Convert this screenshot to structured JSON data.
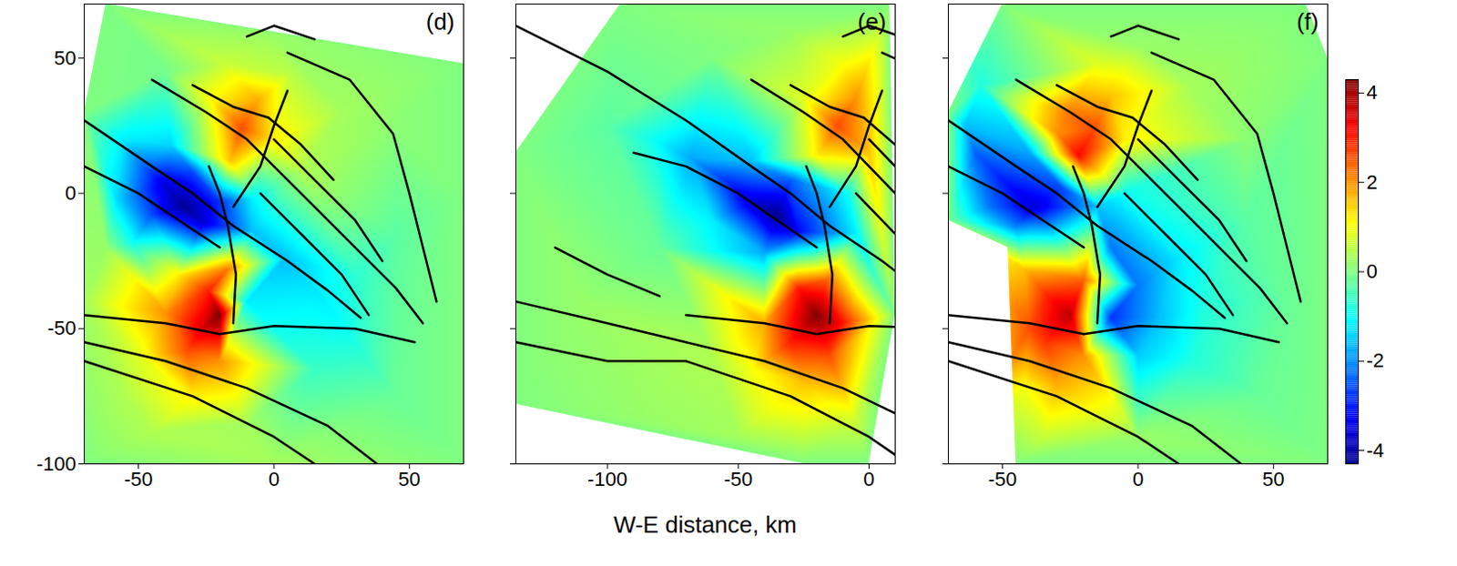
{
  "chart_data": {
    "type": "heatmap",
    "xlabel": "W-E distance, km",
    "colorbar": {
      "range": [
        -4.3,
        4.3
      ],
      "ticks": [
        -4,
        -2,
        0,
        2,
        4
      ]
    },
    "faults": [
      [
        [
          -15,
          -48
        ],
        [
          -14,
          -30
        ],
        [
          -17,
          -12
        ],
        [
          -20,
          0
        ],
        [
          -24,
          10
        ]
      ],
      [
        [
          -135,
          62
        ],
        [
          -100,
          45
        ],
        [
          -70,
          27
        ],
        [
          -45,
          10
        ],
        [
          -30,
          0
        ],
        [
          -15,
          -12
        ],
        [
          5,
          -25
        ],
        [
          20,
          -36
        ],
        [
          32,
          -46
        ]
      ],
      [
        [
          5,
          52
        ],
        [
          28,
          42
        ],
        [
          44,
          22
        ],
        [
          50,
          0
        ],
        [
          55,
          -20
        ],
        [
          60,
          -40
        ]
      ],
      [
        [
          -45,
          42
        ],
        [
          -25,
          30
        ],
        [
          -10,
          20
        ],
        [
          5,
          5
        ],
        [
          15,
          -5
        ],
        [
          30,
          -20
        ],
        [
          45,
          -35
        ],
        [
          55,
          -48
        ]
      ],
      [
        [
          -20,
          -52
        ],
        [
          0,
          -49
        ],
        [
          30,
          -50
        ],
        [
          52,
          -55
        ]
      ],
      [
        [
          -135,
          -40
        ],
        [
          -100,
          -48
        ],
        [
          -70,
          -55
        ],
        [
          -40,
          -62
        ],
        [
          -10,
          -72
        ],
        [
          20,
          -86
        ],
        [
          38,
          -100
        ]
      ],
      [
        [
          -135,
          -55
        ],
        [
          -100,
          -62
        ],
        [
          -70,
          -62
        ],
        [
          -30,
          -75
        ],
        [
          0,
          -90
        ],
        [
          15,
          -100
        ]
      ],
      [
        [
          -70,
          -45
        ],
        [
          -40,
          -48
        ],
        [
          -20,
          -52
        ]
      ],
      [
        [
          -90,
          15
        ],
        [
          -70,
          10
        ],
        [
          -50,
          0
        ],
        [
          -35,
          -10
        ],
        [
          -20,
          -20
        ]
      ],
      [
        [
          -5,
          0
        ],
        [
          10,
          -15
        ],
        [
          25,
          -30
        ],
        [
          35,
          -45
        ]
      ],
      [
        [
          0,
          20
        ],
        [
          15,
          5
        ],
        [
          30,
          -10
        ],
        [
          40,
          -25
        ]
      ],
      [
        [
          -10,
          58
        ],
        [
          0,
          62
        ],
        [
          15,
          57
        ]
      ],
      [
        [
          -120,
          -20
        ],
        [
          -100,
          -30
        ],
        [
          -80,
          -38
        ]
      ],
      [
        [
          -15,
          -5
        ],
        [
          -5,
          10
        ],
        [
          0,
          25
        ],
        [
          5,
          38
        ]
      ],
      [
        [
          -30,
          40
        ],
        [
          -15,
          32
        ],
        [
          -2,
          28
        ],
        [
          10,
          18
        ],
        [
          22,
          5
        ]
      ]
    ],
    "panels": [
      {
        "label": "(d)",
        "xlim": [
          -70,
          70
        ],
        "ylim": [
          -100,
          70
        ],
        "xticks": [
          -50,
          0,
          50
        ],
        "yticks": [
          -100,
          -50,
          0,
          50
        ],
        "footprint": [
          [
            -62,
            70
          ],
          [
            70,
            48
          ],
          [
            70,
            -100
          ],
          [
            -70,
            -100
          ],
          [
            -70,
            30
          ]
        ],
        "samples": [
          [
            -62,
            70,
            0
          ],
          [
            70,
            48,
            0
          ],
          [
            70,
            -100,
            0
          ],
          [
            -70,
            -100,
            0
          ],
          [
            -70,
            30,
            0
          ],
          [
            0,
            59,
            0.2
          ],
          [
            70,
            0,
            0
          ],
          [
            0,
            -100,
            0.3
          ],
          [
            -70,
            -40,
            0.3
          ],
          [
            -66,
            50,
            0
          ],
          [
            -33,
            -5,
            -4.3
          ],
          [
            -40,
            3,
            -3.6
          ],
          [
            -26,
            -11,
            -3.6
          ],
          [
            -48,
            10,
            -2.4
          ],
          [
            -45,
            -8,
            -2.6
          ],
          [
            -30,
            8,
            -2.6
          ],
          [
            -56,
            20,
            -1.2
          ],
          [
            -58,
            -2,
            -1.4
          ],
          [
            -20,
            -3,
            -2.8
          ],
          [
            -38,
            18,
            -1.4
          ],
          [
            -52,
            -18,
            -1.0
          ],
          [
            -20,
            -45,
            4.3
          ],
          [
            -26,
            -50,
            3.6
          ],
          [
            -24,
            -36,
            3.0
          ],
          [
            -32,
            -58,
            2.6
          ],
          [
            -40,
            -44,
            2.0
          ],
          [
            -17,
            -28,
            2.2
          ],
          [
            -30,
            -75,
            1.2
          ],
          [
            -50,
            -60,
            0.8
          ],
          [
            -20,
            -62,
            2.0
          ],
          [
            -35,
            -30,
            1.2
          ],
          [
            -55,
            -75,
            0.4
          ],
          [
            -12,
            24,
            2.6
          ],
          [
            -6,
            34,
            1.8
          ],
          [
            -16,
            12,
            1.6
          ],
          [
            0,
            20,
            1.2
          ],
          [
            -22,
            34,
            1.2
          ],
          [
            6,
            44,
            0.5
          ],
          [
            -18,
            48,
            0.6
          ],
          [
            10,
            8,
            0.4
          ],
          [
            -8,
            -14,
            -1.6
          ],
          [
            4,
            -24,
            -1.6
          ],
          [
            14,
            -34,
            -1.3
          ],
          [
            26,
            -50,
            -1.0
          ],
          [
            -10,
            -40,
            -1.2
          ],
          [
            30,
            -30,
            -0.7
          ],
          [
            15,
            -65,
            -0.6
          ],
          [
            -8,
            -2,
            -1.2
          ],
          [
            45,
            25,
            0.1
          ],
          [
            45,
            -15,
            -0.3
          ],
          [
            45,
            -75,
            -0.2
          ],
          [
            -10,
            -85,
            0.3
          ],
          [
            -45,
            -88,
            0.4
          ],
          [
            25,
            30,
            0.3
          ],
          [
            -40,
            45,
            -0.1
          ],
          [
            -62,
            -20,
            0.2
          ]
        ]
      },
      {
        "label": "(e)",
        "xlim": [
          -135,
          10
        ],
        "ylim": [
          -100,
          70
        ],
        "xticks": [
          -100,
          -50,
          0
        ],
        "yticks": [
          -100,
          -50,
          0,
          50
        ],
        "tick_labels": "x",
        "footprint": [
          [
            -95,
            70
          ],
          [
            8,
            70
          ],
          [
            10,
            -45
          ],
          [
            0,
            -100
          ],
          [
            -25,
            -100
          ],
          [
            -135,
            -78
          ],
          [
            -135,
            15
          ]
        ],
        "samples": [
          [
            -95,
            70,
            0
          ],
          [
            8,
            70,
            0
          ],
          [
            10,
            -45,
            0
          ],
          [
            0,
            -100,
            0
          ],
          [
            -25,
            -100,
            0
          ],
          [
            -135,
            -78,
            0
          ],
          [
            -135,
            15,
            0
          ],
          [
            -35,
            -8,
            -4.3
          ],
          [
            -45,
            -3,
            -3.6
          ],
          [
            -27,
            -14,
            -3.2
          ],
          [
            -55,
            5,
            -2.8
          ],
          [
            -68,
            13,
            -1.8
          ],
          [
            -82,
            20,
            -1.0
          ],
          [
            -30,
            5,
            -2.4
          ],
          [
            -45,
            12,
            -1.6
          ],
          [
            -40,
            -22,
            -1.8
          ],
          [
            -60,
            -10,
            -1.2
          ],
          [
            -100,
            25,
            -0.3
          ],
          [
            -20,
            -45,
            4.3
          ],
          [
            -27,
            -35,
            3.0
          ],
          [
            -30,
            -55,
            3.0
          ],
          [
            -16,
            -32,
            2.4
          ],
          [
            -40,
            -48,
            1.8
          ],
          [
            -25,
            -70,
            1.6
          ],
          [
            -45,
            -65,
            1.0
          ],
          [
            -15,
            -60,
            2.6
          ],
          [
            -12,
            -48,
            3.4
          ],
          [
            -60,
            -60,
            0.4
          ],
          [
            -12,
            25,
            2.6
          ],
          [
            -5,
            35,
            2.0
          ],
          [
            -20,
            14,
            1.2
          ],
          [
            0,
            15,
            1.6
          ],
          [
            -10,
            48,
            1.0
          ],
          [
            -25,
            35,
            0.8
          ],
          [
            -3,
            60,
            0.4
          ],
          [
            -5,
            -15,
            -1.2
          ],
          [
            2,
            -30,
            -0.6
          ],
          [
            -8,
            0,
            -1.0
          ],
          [
            -110,
            -40,
            0.2
          ],
          [
            -90,
            -80,
            0.2
          ],
          [
            -60,
            50,
            0
          ],
          [
            -120,
            40,
            0
          ],
          [
            -30,
            60,
            0.2
          ],
          [
            -80,
            -20,
            -0.2
          ],
          [
            -5,
            -85,
            0.6
          ],
          [
            -50,
            -90,
            0.3
          ]
        ]
      },
      {
        "label": "(f)",
        "xlim": [
          -70,
          70
        ],
        "ylim": [
          -100,
          70
        ],
        "xticks": [
          -50,
          0,
          50
        ],
        "yticks": [
          -100,
          -50,
          0,
          50
        ],
        "tick_labels": "x",
        "footprint": [
          [
            -50,
            70
          ],
          [
            62,
            70
          ],
          [
            70,
            50
          ],
          [
            70,
            -100
          ],
          [
            -45,
            -100
          ],
          [
            -48,
            -20
          ],
          [
            -70,
            -10
          ],
          [
            -70,
            30
          ]
        ],
        "samples": [
          [
            -50,
            70,
            0
          ],
          [
            62,
            70,
            0
          ],
          [
            70,
            50,
            0
          ],
          [
            70,
            -100,
            0
          ],
          [
            -45,
            -100,
            0
          ],
          [
            -70,
            -100,
            0
          ],
          [
            -70,
            -10,
            0
          ],
          [
            -70,
            30,
            0
          ],
          [
            -70,
            70,
            0
          ],
          [
            -38,
            -5,
            -3.6
          ],
          [
            -50,
            5,
            -3.0
          ],
          [
            -60,
            15,
            -2.4
          ],
          [
            -64,
            25,
            -1.6
          ],
          [
            -28,
            2,
            -2.6
          ],
          [
            -45,
            -12,
            -2.2
          ],
          [
            -55,
            -5,
            -2.2
          ],
          [
            -40,
            15,
            -1.8
          ],
          [
            -58,
            40,
            -0.8
          ],
          [
            -22,
            14,
            3.2
          ],
          [
            -16,
            24,
            2.6
          ],
          [
            -26,
            30,
            2.2
          ],
          [
            -10,
            36,
            1.6
          ],
          [
            -30,
            22,
            2.0
          ],
          [
            -5,
            20,
            1.2
          ],
          [
            -15,
            48,
            0.8
          ],
          [
            -10,
            -20,
            -2.2
          ],
          [
            0,
            -34,
            -2.2
          ],
          [
            -10,
            -46,
            -2.8
          ],
          [
            8,
            -46,
            -1.6
          ],
          [
            14,
            -24,
            -1.3
          ],
          [
            0,
            -60,
            -1.5
          ],
          [
            20,
            -62,
            -0.8
          ],
          [
            -15,
            -5,
            -1.6
          ],
          [
            -5,
            0,
            -1.0
          ],
          [
            25,
            -40,
            -0.8
          ],
          [
            -25,
            -45,
            3.8
          ],
          [
            -33,
            -38,
            3.0
          ],
          [
            -34,
            -55,
            2.8
          ],
          [
            -20,
            -32,
            2.4
          ],
          [
            -42,
            -28,
            1.6
          ],
          [
            -30,
            -70,
            1.8
          ],
          [
            -42,
            -72,
            1.0
          ],
          [
            -20,
            -60,
            2.0
          ],
          [
            -40,
            -50,
            2.6
          ],
          [
            40,
            20,
            0.1
          ],
          [
            40,
            -10,
            -0.3
          ],
          [
            45,
            -75,
            -0.2
          ],
          [
            0,
            -90,
            0.2
          ],
          [
            -35,
            -90,
            0.6
          ],
          [
            20,
            40,
            0.3
          ],
          [
            0,
            55,
            0.2
          ],
          [
            55,
            -40,
            -0.2
          ]
        ]
      }
    ]
  }
}
